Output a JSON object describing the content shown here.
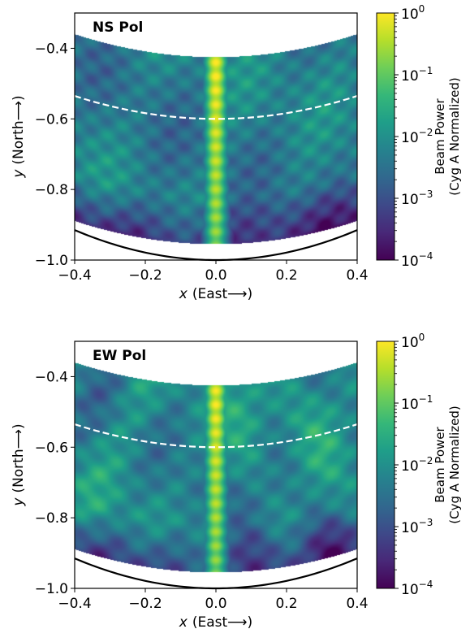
{
  "colors": {
    "viridis": [
      "#440154",
      "#482878",
      "#3e4989",
      "#31688e",
      "#26828e",
      "#1f9e89",
      "#35b779",
      "#6ece58",
      "#b5de2b",
      "#fde725"
    ],
    "dashed_line": "#ffffff",
    "horizon_line": "#000000"
  },
  "chart_data": [
    {
      "type": "heatmap",
      "title": "NS Pol",
      "xlabel_var": "x",
      "xlabel_text": "(East⟶)",
      "ylabel_var": "y",
      "ylabel_text": "(North⟶)",
      "xlim": [
        -0.4,
        0.4
      ],
      "ylim": [
        -1.0,
        -0.3
      ],
      "xticks": [
        -0.4,
        -0.2,
        0.0,
        0.2,
        0.4
      ],
      "xtick_labels": [
        "−0.4",
        "−0.2",
        "0.0",
        "0.2",
        "0.4"
      ],
      "yticks": [
        -1.0,
        -0.8,
        -0.6,
        -0.4
      ],
      "ytick_labels": [
        "−1.0",
        "−0.8",
        "−0.6",
        "−0.4"
      ],
      "colorbar": {
        "label_line1": "Beam Power",
        "label_line2": "(Cyg A Normalized)",
        "scale": "log",
        "range": [
          0.0001,
          1
        ],
        "ticks": [
          {
            "value": 1,
            "base": "10",
            "exp": "0"
          },
          {
            "value": 0.1,
            "base": "10",
            "exp": "−1"
          },
          {
            "value": 0.01,
            "base": "10",
            "exp": "−2"
          },
          {
            "value": 0.001,
            "base": "10",
            "exp": "−3"
          },
          {
            "value": 0.0001,
            "base": "10",
            "exp": "−4"
          }
        ]
      },
      "overlays": {
        "dashed_curve": {
          "y_at_center": -0.6,
          "y_at_edges": -0.535
        },
        "solid_curve": {
          "y_at_center": -1.0,
          "y_at_edges": -0.915
        }
      },
      "beam": {
        "peak_log_power": -0.15,
        "sidelobe_log_power": -2.3,
        "grid_period_x": 0.088,
        "grid_period_y": 0.072
      }
    },
    {
      "type": "heatmap",
      "title": "EW Pol",
      "xlabel_var": "x",
      "xlabel_text": "(East⟶)",
      "ylabel_var": "y",
      "ylabel_text": "(North⟶)",
      "xlim": [
        -0.4,
        0.4
      ],
      "ylim": [
        -1.0,
        -0.3
      ],
      "xticks": [
        -0.4,
        -0.2,
        0.0,
        0.2,
        0.4
      ],
      "xtick_labels": [
        "−0.4",
        "−0.2",
        "0.0",
        "0.2",
        "0.4"
      ],
      "yticks": [
        -1.0,
        -0.8,
        -0.6,
        -0.4
      ],
      "ytick_labels": [
        "−1.0",
        "−0.8",
        "−0.6",
        "−0.4"
      ],
      "colorbar": {
        "label_line1": "Beam Power",
        "label_line2": "(Cyg A Normalized)",
        "scale": "log",
        "range": [
          0.0001,
          1
        ],
        "ticks": [
          {
            "value": 1,
            "base": "10",
            "exp": "0"
          },
          {
            "value": 0.1,
            "base": "10",
            "exp": "−1"
          },
          {
            "value": 0.01,
            "base": "10",
            "exp": "−2"
          },
          {
            "value": 0.001,
            "base": "10",
            "exp": "−3"
          },
          {
            "value": 0.0001,
            "base": "10",
            "exp": "−4"
          }
        ]
      },
      "overlays": {
        "dashed_curve": {
          "y_at_center": -0.6,
          "y_at_edges": -0.535
        },
        "solid_curve": {
          "y_at_center": -1.0,
          "y_at_edges": -0.915
        }
      },
      "beam": {
        "peak_log_power": -0.2,
        "sidelobe_log_power": -2.1,
        "grid_period_x": 0.11,
        "grid_period_y": 0.09
      }
    }
  ]
}
